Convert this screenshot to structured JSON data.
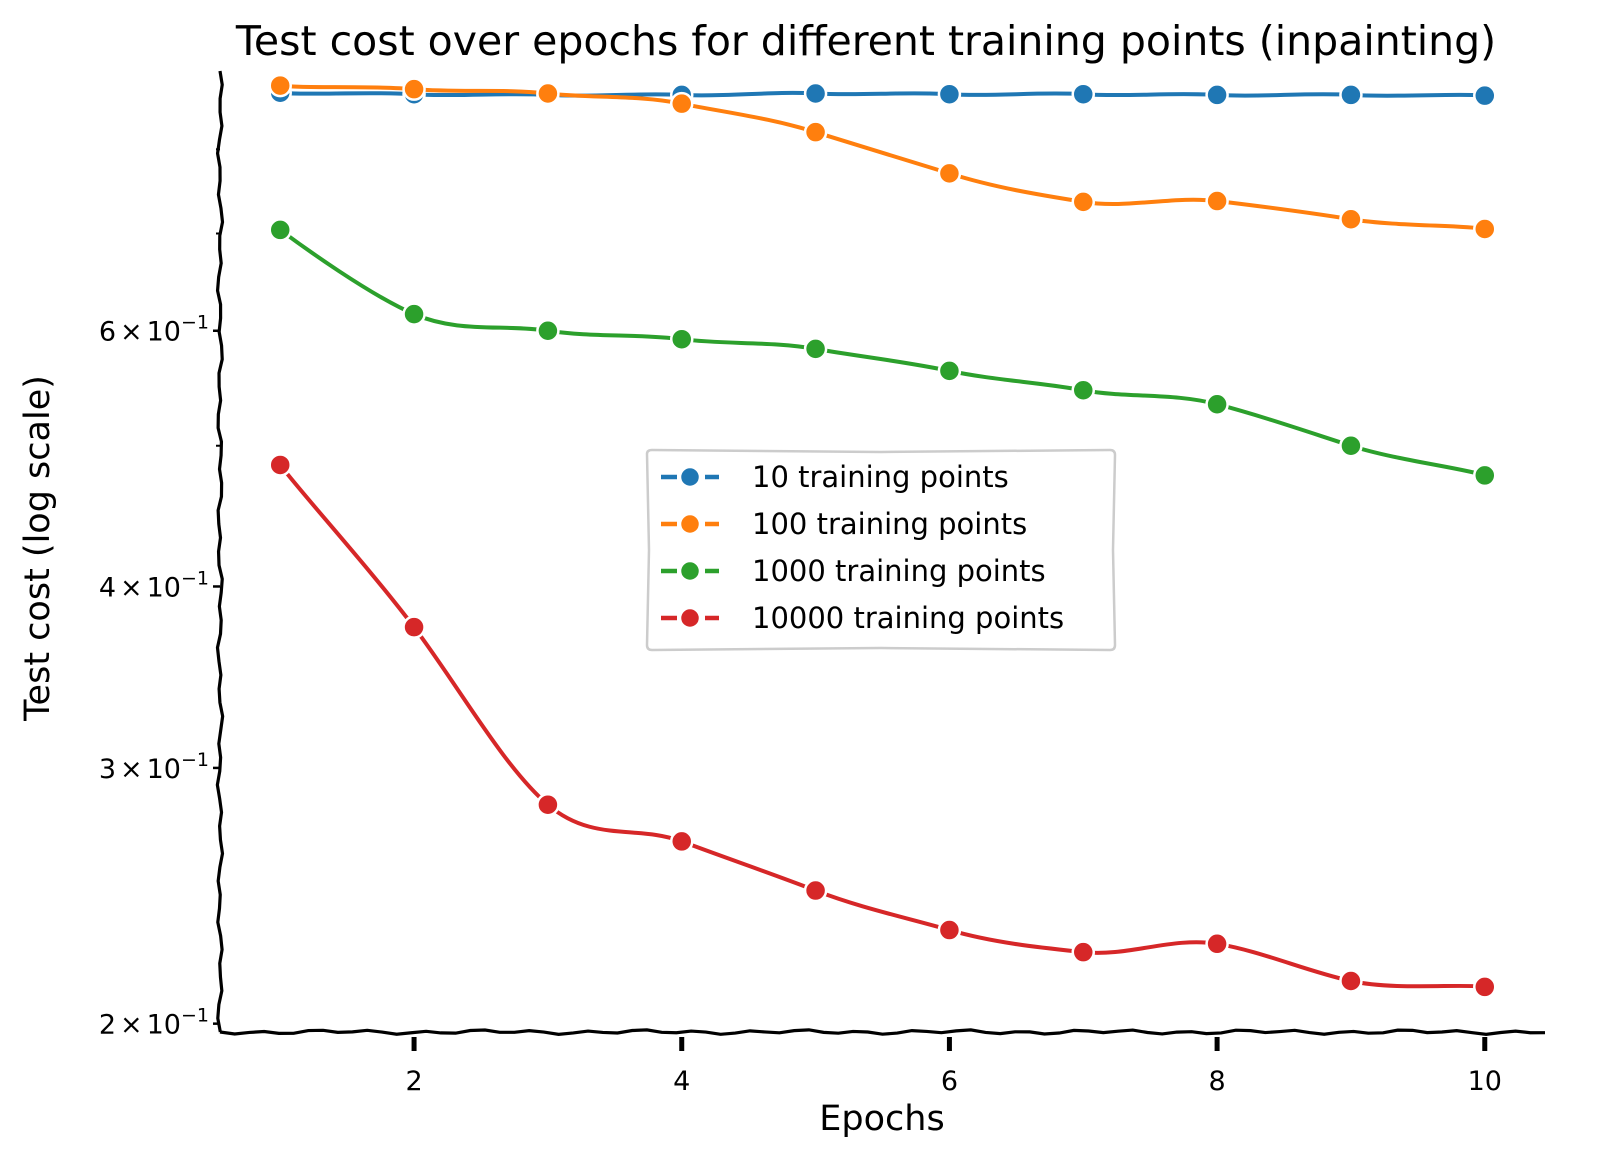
{
  "chart_data": {
    "type": "line",
    "title": "Test cost over epochs for different training points (inpainting)",
    "xlabel": "Epochs",
    "ylabel": "Test cost (log scale)",
    "yscale": "log",
    "xlim": [
      0.55,
      10.45
    ],
    "ylim": [
      0.198,
      0.9
    ],
    "x": [
      1,
      2,
      3,
      4,
      5,
      6,
      7,
      8,
      9,
      10
    ],
    "x_ticks": [
      2,
      4,
      6,
      8,
      10
    ],
    "x_tick_labels": [
      "2",
      "4",
      "6",
      "8",
      "10"
    ],
    "y_ticks": [
      {
        "value": 0.2,
        "mantissa": "2",
        "times": "×",
        "exponent": "10",
        "power": "−1"
      },
      {
        "value": 0.3,
        "mantissa": "3",
        "times": "×",
        "exponent": "10",
        "power": "−1"
      },
      {
        "value": 0.4,
        "mantissa": "4",
        "times": "×",
        "exponent": "10",
        "power": "−1"
      },
      {
        "value": 0.6,
        "mantissa": "6",
        "times": "×",
        "exponent": "10",
        "power": "−1"
      }
    ],
    "y_minor_ticks": [
      0.5,
      0.7,
      0.8
    ],
    "series": [
      {
        "name": "10 training points",
        "color": "#1f77b4",
        "values": [
          0.875,
          0.873,
          0.872,
          0.872,
          0.874,
          0.873,
          0.873,
          0.872,
          0.872,
          0.871
        ]
      },
      {
        "name": "100 training points",
        "color": "#ff7f0e",
        "values": [
          0.885,
          0.88,
          0.874,
          0.86,
          0.822,
          0.77,
          0.736,
          0.737,
          0.716,
          0.705
        ]
      },
      {
        "name": "1000 training points",
        "color": "#2ca02c",
        "values": [
          0.704,
          0.616,
          0.6,
          0.592,
          0.583,
          0.563,
          0.546,
          0.534,
          0.5,
          0.477
        ]
      },
      {
        "name": "10000 training points",
        "color": "#d62728",
        "values": [
          0.485,
          0.375,
          0.283,
          0.267,
          0.247,
          0.232,
          0.224,
          0.227,
          0.214,
          0.212
        ]
      }
    ],
    "legend": {
      "location": "center"
    },
    "grid": false
  }
}
